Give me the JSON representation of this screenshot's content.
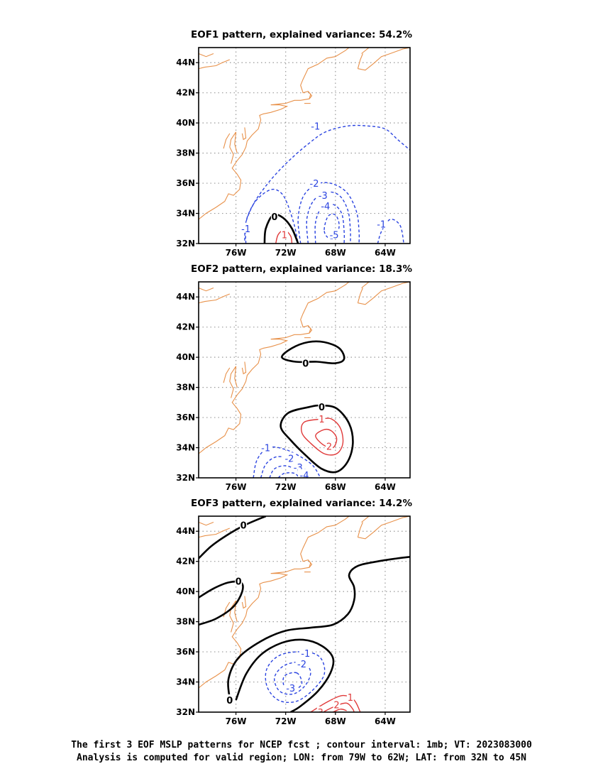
{
  "colors": {
    "coast": "#e8914a",
    "negative": "#2b44e0",
    "positive": "#e03a3a",
    "zero": "#000000",
    "grid": "#999999"
  },
  "axes": {
    "lon_ticks": [
      "76W",
      "72W",
      "68W",
      "64W"
    ],
    "lat_ticks": [
      "44N",
      "42N",
      "40N",
      "38N",
      "36N",
      "34N",
      "32N"
    ]
  },
  "panels": [
    {
      "title": "EOF1 pattern, explained variance: 54.2%",
      "contour_labels": [
        {
          "text": "-1",
          "kind": "neg",
          "lon": -69.6,
          "lat": 39.8
        },
        {
          "text": "-1",
          "kind": "neg",
          "lon": -75.2,
          "lat": 33.0
        },
        {
          "text": "-1",
          "kind": "neg",
          "lon": -64.3,
          "lat": 33.3
        },
        {
          "text": "-2",
          "kind": "neg",
          "lon": -69.7,
          "lat": 36.0
        },
        {
          "text": "-3",
          "kind": "neg",
          "lon": -69.0,
          "lat": 35.2
        },
        {
          "text": "-4",
          "kind": "neg",
          "lon": -68.8,
          "lat": 34.5
        },
        {
          "text": "-5",
          "kind": "neg",
          "lon": -68.1,
          "lat": 32.6
        },
        {
          "text": "1",
          "kind": "pos",
          "lon": -72.1,
          "lat": 32.6
        },
        {
          "text": "0",
          "kind": "zero",
          "lon": -72.9,
          "lat": 33.8
        }
      ]
    },
    {
      "title": "EOF2 pattern, explained variance: 18.3%",
      "contour_labels": [
        {
          "text": "0",
          "kind": "zero",
          "lon": -70.4,
          "lat": 39.6
        },
        {
          "text": "0",
          "kind": "zero",
          "lon": -69.1,
          "lat": 36.7
        },
        {
          "text": "1",
          "kind": "pos",
          "lon": -69.1,
          "lat": 35.9
        },
        {
          "text": "2",
          "kind": "pos",
          "lon": -68.5,
          "lat": 34.1
        },
        {
          "text": "-1",
          "kind": "neg",
          "lon": -73.6,
          "lat": 34.0
        },
        {
          "text": "-2",
          "kind": "neg",
          "lon": -71.7,
          "lat": 33.3
        },
        {
          "text": "-3",
          "kind": "neg",
          "lon": -71.0,
          "lat": 32.7
        },
        {
          "text": "-4",
          "kind": "neg",
          "lon": -70.5,
          "lat": 32.2
        }
      ]
    },
    {
      "title": "EOF3 pattern, explained variance: 14.2%",
      "contour_labels": [
        {
          "text": "0",
          "kind": "zero",
          "lon": -75.4,
          "lat": 44.4
        },
        {
          "text": "0",
          "kind": "zero",
          "lon": -75.8,
          "lat": 40.7
        },
        {
          "text": "0",
          "kind": "zero",
          "lon": -76.5,
          "lat": 32.8
        },
        {
          "text": "-1",
          "kind": "neg",
          "lon": -70.4,
          "lat": 35.9
        },
        {
          "text": "-2",
          "kind": "neg",
          "lon": -70.7,
          "lat": 35.2
        },
        {
          "text": "-3",
          "kind": "neg",
          "lon": -71.6,
          "lat": 33.6
        },
        {
          "text": "1",
          "kind": "pos",
          "lon": -66.8,
          "lat": 33.0
        },
        {
          "text": "2",
          "kind": "pos",
          "lon": -67.9,
          "lat": 32.5
        },
        {
          "text": "3",
          "kind": "pos",
          "lon": -69.2,
          "lat": 32.0
        }
      ]
    }
  ],
  "caption": {
    "line1": "The first 3 EOF MSLP patterns for NCEP fcst ; contour interval: 1mb; VT: 2023083000",
    "line2": "Analysis is computed for valid region; LON: from 79W to 62W; LAT: from 32N to 45N"
  }
}
